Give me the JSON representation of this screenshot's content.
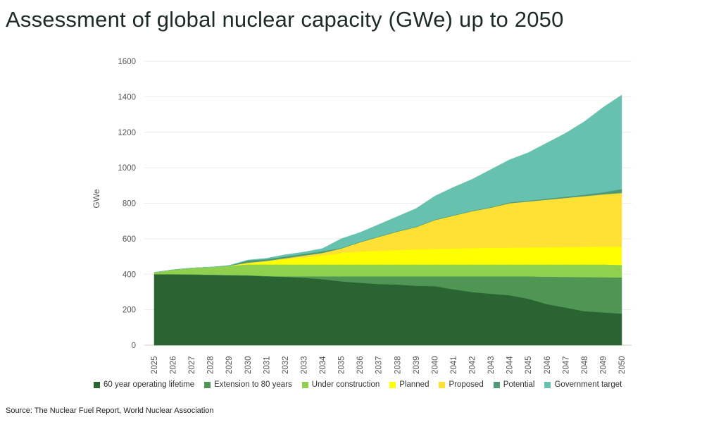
{
  "title": "Assessment of global nuclear capacity (GWe) up to 2050",
  "source": "Source: The Nuclear Fuel Report, World Nuclear Association",
  "chart_data": {
    "type": "area",
    "stacked": true,
    "title": "Assessment of global nuclear capacity (GWe) up to 2050",
    "xlabel": "",
    "ylabel": "GWe",
    "ylim": [
      0,
      1600
    ],
    "yticks": [
      0,
      200,
      400,
      600,
      800,
      1000,
      1200,
      1400,
      1600
    ],
    "grid": true,
    "legend_position": "bottom",
    "categories": [
      "2025",
      "2026",
      "2027",
      "2028",
      "2029",
      "2030",
      "2031",
      "2032",
      "2033",
      "2034",
      "2035",
      "2036",
      "2037",
      "2038",
      "2039",
      "2040",
      "2041",
      "2042",
      "2043",
      "2044",
      "2045",
      "2046",
      "2047",
      "2048",
      "2049",
      "2050"
    ],
    "series": [
      {
        "name": "60 year operating lifetime",
        "color": "#2b6433",
        "values": [
          400,
          400,
          398,
          396,
          394,
          392,
          388,
          385,
          380,
          372,
          360,
          352,
          345,
          342,
          335,
          333,
          315,
          300,
          290,
          282,
          262,
          232,
          212,
          192,
          185,
          178
        ]
      },
      {
        "name": "Extension to 80 years",
        "color": "#4f9654",
        "values": [
          0,
          0,
          2,
          2,
          2,
          3,
          2,
          3,
          8,
          16,
          28,
          36,
          43,
          46,
          53,
          55,
          73,
          88,
          98,
          106,
          126,
          154,
          173,
          192,
          198,
          204
        ]
      },
      {
        "name": "Under construction",
        "color": "#8fd14f",
        "values": [
          10,
          25,
          35,
          42,
          51,
          60,
          65,
          67,
          67,
          67,
          67,
          67,
          67,
          67,
          67,
          67,
          67,
          67,
          67,
          67,
          67,
          69,
          70,
          71,
          72,
          70
        ]
      },
      {
        "name": "Planned",
        "color": "#ffff00",
        "values": [
          0,
          0,
          0,
          0,
          0,
          5,
          17,
          30,
          40,
          50,
          65,
          73,
          77,
          81,
          85,
          88,
          90,
          92,
          94,
          95,
          96,
          97,
          98,
          99,
          100,
          103
        ]
      },
      {
        "name": "Proposed",
        "color": "#ffe135",
        "values": [
          0,
          0,
          0,
          0,
          0,
          5,
          3,
          5,
          10,
          15,
          25,
          52,
          78,
          104,
          125,
          162,
          185,
          208,
          226,
          250,
          259,
          268,
          277,
          286,
          295,
          303
        ]
      },
      {
        "name": "Potential",
        "color": "#4e9a79",
        "values": [
          0,
          0,
          0,
          0,
          0,
          13,
          10,
          10,
          10,
          10,
          3,
          3,
          3,
          3,
          3,
          3,
          3,
          3,
          3,
          5,
          5,
          6,
          7,
          8,
          12,
          22
        ]
      },
      {
        "name": "Government target",
        "color": "#66c2ae",
        "values": [
          0,
          0,
          0,
          0,
          3,
          2,
          5,
          10,
          10,
          15,
          52,
          52,
          67,
          82,
          102,
          132,
          157,
          177,
          212,
          240,
          270,
          314,
          358,
          412,
          478,
          530
        ]
      }
    ]
  }
}
